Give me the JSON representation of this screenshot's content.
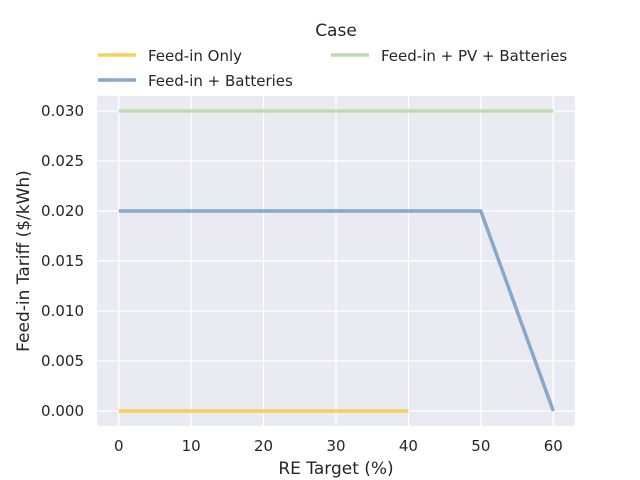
{
  "chart_data": {
    "type": "line",
    "title": "",
    "xlabel": "RE Target (%)",
    "ylabel": "Feed-in Tariff ($/kWh)",
    "xlim": [
      -3,
      63
    ],
    "ylim": [
      -0.0015,
      0.0315
    ],
    "xticks": [
      0,
      10,
      20,
      30,
      40,
      50,
      60
    ],
    "yticks": [
      0.0,
      0.005,
      0.01,
      0.015,
      0.02,
      0.025,
      0.03
    ],
    "ytick_labels": [
      "0.000",
      "0.005",
      "0.010",
      "0.015",
      "0.020",
      "0.025",
      "0.030"
    ],
    "xtick_labels": [
      "0",
      "10",
      "20",
      "30",
      "40",
      "50",
      "60"
    ],
    "grid": true,
    "legend_title": "Case",
    "legend_position": "top",
    "series": [
      {
        "name": "Feed-in Only",
        "color": "#f5d05a",
        "x": [
          0,
          40
        ],
        "y": [
          0.0,
          0.0
        ]
      },
      {
        "name": "Feed-in + Batteries",
        "color": "#86a8cb",
        "x": [
          0,
          50,
          60
        ],
        "y": [
          0.02,
          0.02,
          0.0
        ]
      },
      {
        "name": "Feed-in + PV + Batteries",
        "color": "#bcdcab",
        "x": [
          0,
          60
        ],
        "y": [
          0.03,
          0.03
        ]
      }
    ]
  }
}
